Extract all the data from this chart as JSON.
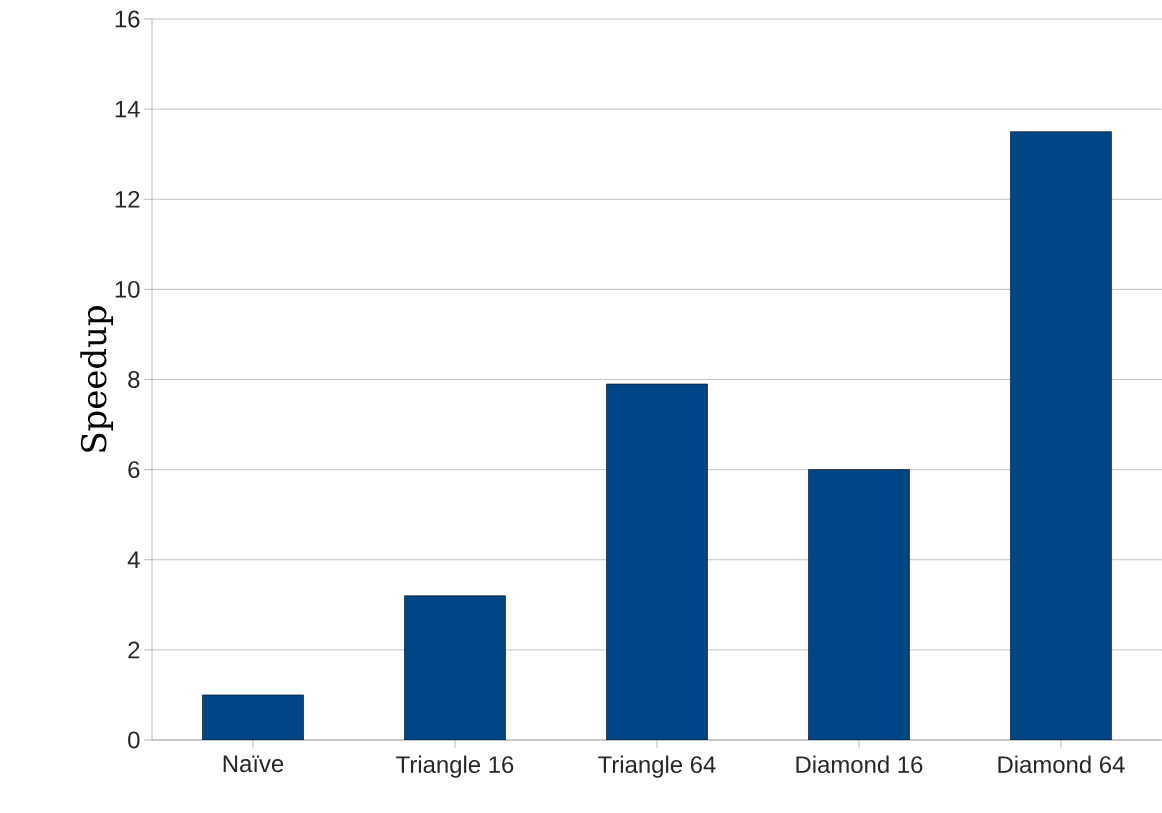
{
  "chart_data": {
    "type": "bar",
    "ylabel": "Speedup",
    "categories": [
      "Naïve",
      "Triangle 16",
      "Triangle 64",
      "Diamond 16",
      "Diamond 64"
    ],
    "values": [
      1.0,
      3.2,
      7.9,
      6.0,
      13.5
    ],
    "color": "#004586",
    "ylim": [
      0,
      16
    ],
    "yticks": [
      0,
      2,
      4,
      6,
      8,
      10,
      12,
      14,
      16
    ],
    "grid": "y"
  }
}
